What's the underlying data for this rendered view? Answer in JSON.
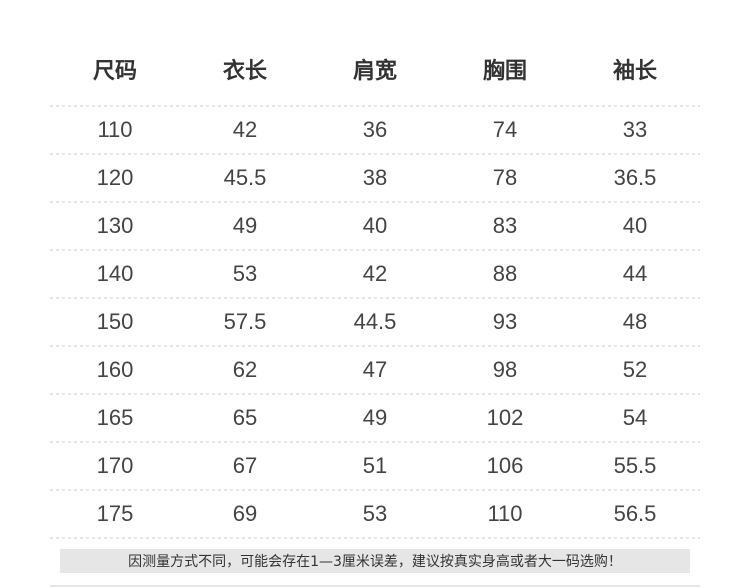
{
  "table": {
    "header": [
      "尺码",
      "衣长",
      "肩宽",
      "胸围",
      "袖长"
    ],
    "rows": [
      [
        110,
        42,
        36,
        74,
        33
      ],
      [
        120,
        45.5,
        38,
        78,
        36.5
      ],
      [
        130,
        49,
        40,
        83,
        40
      ],
      [
        140,
        53,
        42,
        88,
        44
      ],
      [
        150,
        57.5,
        44.5,
        93,
        48
      ],
      [
        160,
        62,
        47,
        98,
        52
      ],
      [
        165,
        65,
        49,
        102,
        54
      ],
      [
        170,
        67,
        51,
        106,
        55.5
      ],
      [
        175,
        69,
        53,
        110,
        56.5
      ]
    ]
  },
  "note": "因测量方式不同，可能会存在1—3厘米误差，建议按真实身高或者大一码选购！"
}
